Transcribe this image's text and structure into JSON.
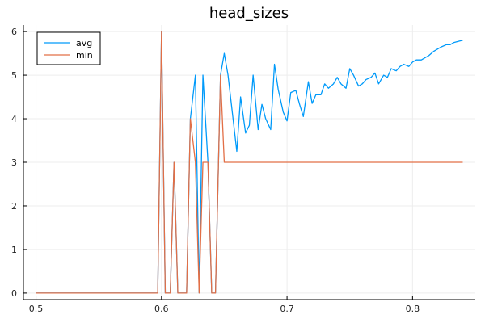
{
  "chart_data": {
    "type": "line",
    "title": "head_sizes",
    "xlabel": "",
    "ylabel": "",
    "xlim": [
      0.49,
      0.85
    ],
    "ylim": [
      -0.15,
      6.15
    ],
    "xticks": [
      0.5,
      0.6,
      0.7,
      0.8
    ],
    "xtick_labels": [
      "0.5",
      "0.6",
      "0.7",
      "0.8"
    ],
    "yticks": [
      0,
      1,
      2,
      3,
      4,
      5,
      6
    ],
    "ytick_labels": [
      "0",
      "1",
      "2",
      "3",
      "4",
      "5",
      "6"
    ],
    "grid": true,
    "legend_position": "top-left",
    "series": [
      {
        "name": "avg",
        "color": "#009AFA",
        "x": [
          0.5,
          0.597,
          0.6,
          0.603,
          0.607,
          0.61,
          0.613,
          0.617,
          0.62,
          0.623,
          0.627,
          0.63,
          0.633,
          0.637,
          0.64,
          0.643,
          0.647,
          0.65,
          0.653,
          0.657,
          0.66,
          0.663,
          0.667,
          0.67,
          0.673,
          0.677,
          0.68,
          0.683,
          0.687,
          0.69,
          0.693,
          0.697,
          0.7,
          0.703,
          0.707,
          0.71,
          0.713,
          0.717,
          0.72,
          0.723,
          0.727,
          0.73,
          0.733,
          0.737,
          0.74,
          0.743,
          0.747,
          0.75,
          0.753,
          0.757,
          0.76,
          0.763,
          0.767,
          0.77,
          0.773,
          0.777,
          0.78,
          0.783,
          0.787,
          0.79,
          0.793,
          0.797,
          0.8,
          0.803,
          0.807,
          0.81,
          0.813,
          0.817,
          0.82,
          0.823,
          0.827,
          0.83,
          0.833,
          0.837,
          0.84
        ],
        "y": [
          0,
          0,
          6,
          0,
          0,
          3,
          0,
          0,
          0,
          4,
          5,
          0,
          5,
          3,
          0,
          0,
          5,
          5.5,
          5,
          4,
          3.25,
          4.5,
          3.67,
          3.85,
          5,
          3.75,
          4.33,
          4,
          3.75,
          5.25,
          4.67,
          4.15,
          3.95,
          4.6,
          4.65,
          4.33,
          4.05,
          4.85,
          4.35,
          4.55,
          4.55,
          4.8,
          4.7,
          4.8,
          4.95,
          4.8,
          4.7,
          5.15,
          5.0,
          4.75,
          4.8,
          4.9,
          4.95,
          5.05,
          4.8,
          5.0,
          4.95,
          5.15,
          5.1,
          5.2,
          5.25,
          5.2,
          5.3,
          5.35,
          5.35,
          5.4,
          5.45,
          5.55,
          5.6,
          5.65,
          5.7,
          5.7,
          5.75,
          5.78,
          5.8
        ]
      },
      {
        "name": "min",
        "color": "#E26F46",
        "x": [
          0.5,
          0.597,
          0.6,
          0.603,
          0.607,
          0.61,
          0.613,
          0.617,
          0.62,
          0.623,
          0.627,
          0.63,
          0.633,
          0.637,
          0.64,
          0.643,
          0.647,
          0.65,
          0.84
        ],
        "y": [
          0,
          0,
          6,
          0,
          0,
          3,
          0,
          0,
          0,
          4,
          3,
          0,
          3,
          3,
          0,
          0,
          5,
          3,
          3
        ]
      }
    ]
  }
}
